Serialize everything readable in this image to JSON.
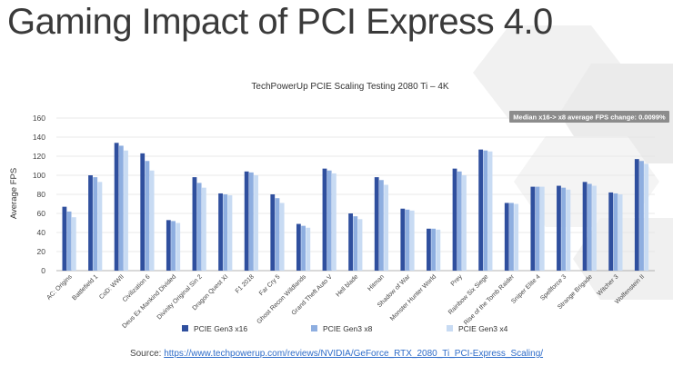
{
  "page": {
    "title": "Gaming Impact of PCI Express 4.0",
    "source_label": "Source:",
    "source_url": "https://www.techpowerup.com/reviews/NVIDIA/GeForce_RTX_2080_Ti_PCI-Express_Scaling/"
  },
  "colors": {
    "series": [
      "#2f4f9e",
      "#8eaee0",
      "#c8dbf3"
    ],
    "grid": "#e3e3e3",
    "axis": "#9a9a9a"
  },
  "chart_data": {
    "type": "bar",
    "title": "TechPowerUp PCIE Scaling Testing 2080 Ti – 4K",
    "xlabel": "",
    "ylabel": "Average FPS",
    "ylim": [
      0,
      160
    ],
    "yticks": [
      0,
      20,
      40,
      60,
      80,
      100,
      120,
      140,
      160
    ],
    "grid": true,
    "legend": "bottom",
    "annotation": "Median x16-> x8 average FPS change: 0.0099%",
    "categories": [
      "AC: Origins",
      "Battlefield 1",
      "CoD: WWII",
      "Civilization 6",
      "Deus Ex Mankind Divided",
      "Divinity Original Sin 2",
      "Dragon Quest XI",
      "F1 2018",
      "Far Cry 5",
      "Ghost Recon Wildlands",
      "Grand Theft Auto V",
      "Hell blade",
      "Hitman",
      "Shadow of War",
      "Monster Hunter World",
      "Prey",
      "Rainbow Six Siege",
      "Rise of the Tomb Raider",
      "Sniper Elite 4",
      "Spellforce 3",
      "Strange Brigade",
      "Witcher 3",
      "Wolfenstein II"
    ],
    "series": [
      {
        "name": "PCIE Gen3 x16",
        "values": [
          67,
          100,
          134,
          123,
          53,
          98,
          81,
          104,
          80,
          49,
          107,
          60,
          98,
          65,
          44,
          107,
          127,
          71,
          88,
          89,
          93,
          82,
          117
        ]
      },
      {
        "name": "PCIE Gen3 x8",
        "values": [
          62,
          98,
          131,
          115,
          52,
          92,
          80,
          103,
          76,
          47,
          105,
          57,
          95,
          64,
          44,
          104,
          126,
          71,
          88,
          87,
          91,
          81,
          115
        ]
      },
      {
        "name": "PCIE Gen3 x4",
        "values": [
          56,
          93,
          126,
          105,
          50,
          87,
          79,
          100,
          71,
          45,
          102,
          54,
          90,
          63,
          43,
          100,
          125,
          70,
          88,
          85,
          89,
          80,
          112
        ]
      }
    ]
  }
}
